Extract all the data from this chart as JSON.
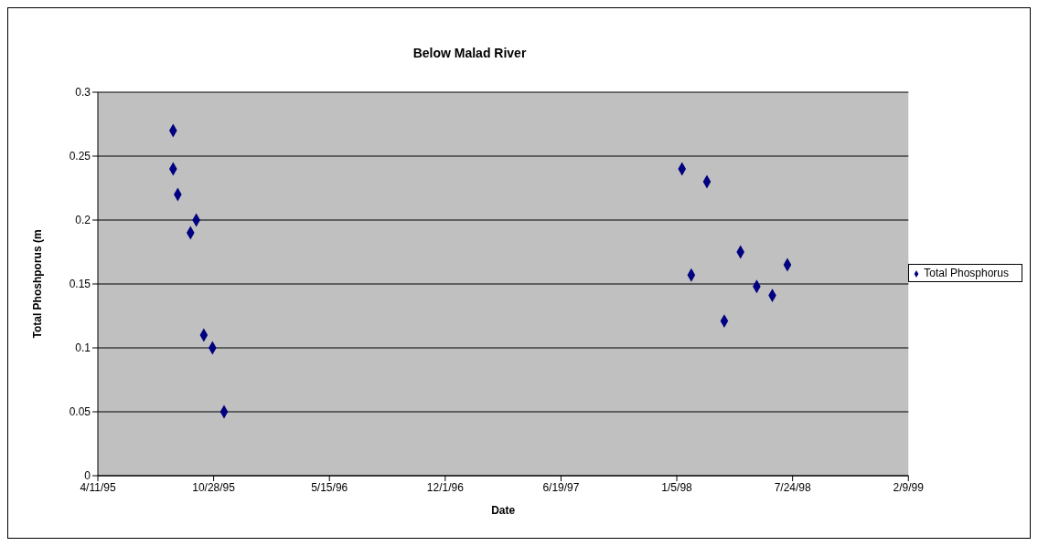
{
  "chart_data": {
    "type": "scatter",
    "title": "Below Malad River",
    "xlabel": "Date",
    "ylabel": "Total Phoshporus (m",
    "x": [
      "1995-08-19",
      "1995-08-19",
      "1995-08-27",
      "1995-09-18",
      "1995-09-28",
      "1995-10-11",
      "1995-10-26",
      "1995-11-15",
      "1998-01-14",
      "1998-01-30",
      "1998-02-26",
      "1998-03-28",
      "1998-04-25",
      "1998-05-23",
      "1998-06-19",
      "1998-07-15"
    ],
    "series": [
      {
        "name": "Total Phosphorus",
        "color": "#000080",
        "values": [
          0.27,
          0.24,
          0.22,
          0.19,
          0.2,
          0.11,
          0.1,
          0.05,
          0.24,
          0.157,
          0.23,
          0.121,
          0.175,
          0.148,
          0.141,
          0.165
        ]
      }
    ],
    "xlim": [
      "1995-04-11",
      "1999-02-09"
    ],
    "xticks": [
      {
        "value": "1995-04-11",
        "label": "4/11/95"
      },
      {
        "value": "1995-10-28",
        "label": "10/28/95"
      },
      {
        "value": "1996-05-15",
        "label": "5/15/96"
      },
      {
        "value": "1996-12-01",
        "label": "12/1/96"
      },
      {
        "value": "1997-06-19",
        "label": "6/19/97"
      },
      {
        "value": "1998-01-05",
        "label": "1/5/98"
      },
      {
        "value": "1998-07-24",
        "label": "7/24/98"
      },
      {
        "value": "1999-02-09",
        "label": "2/9/99"
      }
    ],
    "ylim": [
      0,
      0.3
    ],
    "yticks": [
      0,
      0.05,
      0.1,
      0.15,
      0.2,
      0.25,
      0.3
    ],
    "grid": "y",
    "legend": "right",
    "marker": "diamond"
  }
}
